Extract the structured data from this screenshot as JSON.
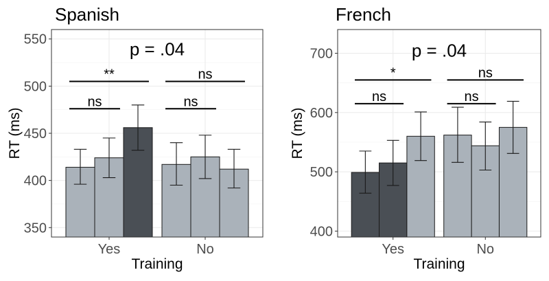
{
  "chart_data": [
    {
      "type": "bar",
      "title": "Spanish",
      "xlabel": "Training",
      "ylabel": "RT (ms)",
      "ylim": [
        340,
        560
      ],
      "yticks": [
        350,
        400,
        450,
        500,
        550
      ],
      "grid": true,
      "categories": [
        "Yes",
        "No"
      ],
      "bars": [
        {
          "category": "Yes",
          "value": 414,
          "err_low": 396,
          "err_high": 433,
          "color": "#aab2ba"
        },
        {
          "category": "Yes",
          "value": 424,
          "err_low": 403,
          "err_high": 445,
          "color": "#aab2ba"
        },
        {
          "category": "Yes",
          "value": 456,
          "err_low": 432,
          "err_high": 480,
          "color": "#4a4f55"
        },
        {
          "category": "No",
          "value": 417,
          "err_low": 395,
          "err_high": 440,
          "color": "#aab2ba"
        },
        {
          "category": "No",
          "value": 425,
          "err_low": 402,
          "err_high": 448,
          "color": "#aab2ba"
        },
        {
          "category": "No",
          "value": 412,
          "err_low": 392,
          "err_high": 433,
          "color": "#aab2ba"
        }
      ],
      "annotations": [
        {
          "text": "p = .04",
          "kind": "header",
          "y": 540
        },
        {
          "text": "**",
          "from_bar": 0,
          "to_bar": 2,
          "y": 505
        },
        {
          "text": "ns",
          "from_bar": 0,
          "to_bar": 1,
          "y": 476
        },
        {
          "text": "ns",
          "from_bar": 3,
          "to_bar": 5,
          "y": 505
        },
        {
          "text": "ns",
          "from_bar": 3,
          "to_bar": 4,
          "y": 476
        }
      ]
    },
    {
      "type": "bar",
      "title": "French",
      "xlabel": "Training",
      "ylabel": "RT (ms)",
      "ylim": [
        390,
        740
      ],
      "yticks": [
        400,
        500,
        600,
        700
      ],
      "grid": true,
      "categories": [
        "Yes",
        "No"
      ],
      "bars": [
        {
          "category": "Yes",
          "value": 499,
          "err_low": 464,
          "err_high": 535,
          "color": "#4a4f55"
        },
        {
          "category": "Yes",
          "value": 515,
          "err_low": 477,
          "err_high": 553,
          "color": "#4a4f55"
        },
        {
          "category": "Yes",
          "value": 560,
          "err_low": 519,
          "err_high": 601,
          "color": "#aab2ba"
        },
        {
          "category": "No",
          "value": 562,
          "err_low": 516,
          "err_high": 609,
          "color": "#aab2ba"
        },
        {
          "category": "No",
          "value": 544,
          "err_low": 503,
          "err_high": 584,
          "color": "#aab2ba"
        },
        {
          "category": "No",
          "value": 575,
          "err_low": 531,
          "err_high": 619,
          "color": "#aab2ba"
        }
      ],
      "annotations": [
        {
          "text": "p = .04",
          "kind": "header",
          "y": 706
        },
        {
          "text": "*",
          "from_bar": 0,
          "to_bar": 2,
          "y": 655
        },
        {
          "text": "ns",
          "from_bar": 0,
          "to_bar": 1,
          "y": 615
        },
        {
          "text": "ns",
          "from_bar": 3,
          "to_bar": 5,
          "y": 655
        },
        {
          "text": "ns",
          "from_bar": 3,
          "to_bar": 4,
          "y": 615
        }
      ]
    }
  ]
}
